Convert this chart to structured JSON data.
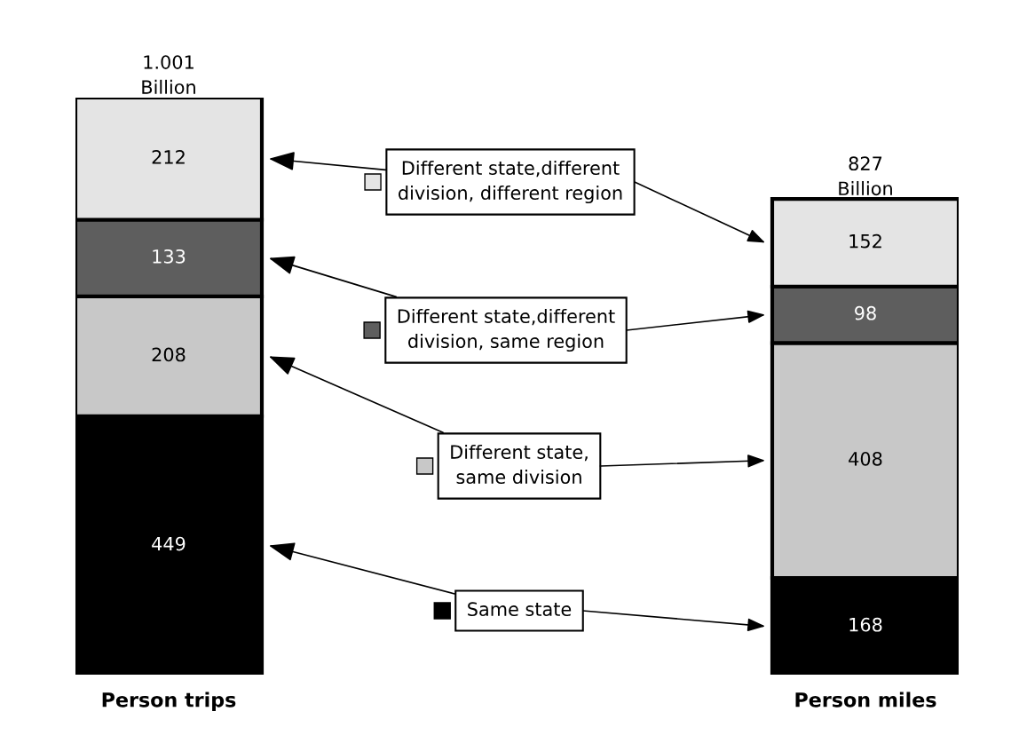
{
  "chart_data": {
    "type": "bar",
    "stacked": true,
    "categories": [
      "Person trips",
      "Person miles"
    ],
    "data_labels": true,
    "legend": "center",
    "totals": [
      "1.001\nBillion",
      "827\nBillion"
    ],
    "series": [
      {
        "name": "Same state",
        "color": "#000000",
        "values": [
          449,
          168
        ]
      },
      {
        "name": "Different state,\nsame division",
        "color": "#c8c8c8",
        "values": [
          208,
          408
        ]
      },
      {
        "name": "Different state,different\ndivision, same region",
        "color": "#5e5e5e",
        "values": [
          133,
          98
        ]
      },
      {
        "name": "Different state,different\ndivision, different region",
        "color": "#e4e4e4",
        "values": [
          212,
          152
        ]
      }
    ]
  }
}
